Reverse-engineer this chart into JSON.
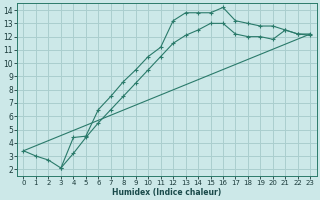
{
  "xlabel": "Humidex (Indice chaleur)",
  "bg_color": "#cce8e8",
  "grid_color": "#aacece",
  "line_color": "#2a7a6a",
  "xlim": [
    -0.5,
    23.5
  ],
  "ylim": [
    1.5,
    14.5
  ],
  "xticks": [
    0,
    1,
    2,
    3,
    4,
    5,
    6,
    7,
    8,
    9,
    10,
    11,
    12,
    13,
    14,
    15,
    16,
    17,
    18,
    19,
    20,
    21,
    22,
    23
  ],
  "yticks": [
    2,
    3,
    4,
    5,
    6,
    7,
    8,
    9,
    10,
    11,
    12,
    13,
    14
  ],
  "line1_x": [
    0,
    1,
    2,
    3,
    4,
    5,
    6,
    7,
    8,
    9,
    10,
    11,
    12,
    13,
    14,
    15,
    16,
    17,
    18,
    19,
    20,
    21,
    22,
    23
  ],
  "line1_y": [
    3.4,
    3.0,
    2.7,
    2.1,
    4.4,
    4.5,
    6.5,
    7.5,
    8.6,
    9.5,
    10.5,
    11.2,
    13.2,
    13.8,
    13.8,
    13.8,
    14.2,
    13.2,
    13.0,
    12.8,
    12.8,
    12.5,
    12.2,
    12.2
  ],
  "line2_x": [
    3,
    4,
    5,
    6,
    7,
    8,
    9,
    10,
    11,
    12,
    13,
    14,
    15,
    16,
    17,
    18,
    19,
    20,
    21,
    22,
    23
  ],
  "line2_y": [
    2.1,
    3.2,
    4.4,
    5.5,
    6.5,
    7.5,
    8.5,
    9.5,
    10.5,
    11.5,
    12.1,
    12.5,
    13.0,
    13.0,
    12.2,
    12.0,
    12.0,
    11.8,
    12.5,
    12.2,
    12.1
  ],
  "line3_x": [
    0,
    23
  ],
  "line3_y": [
    3.4,
    12.2
  ]
}
